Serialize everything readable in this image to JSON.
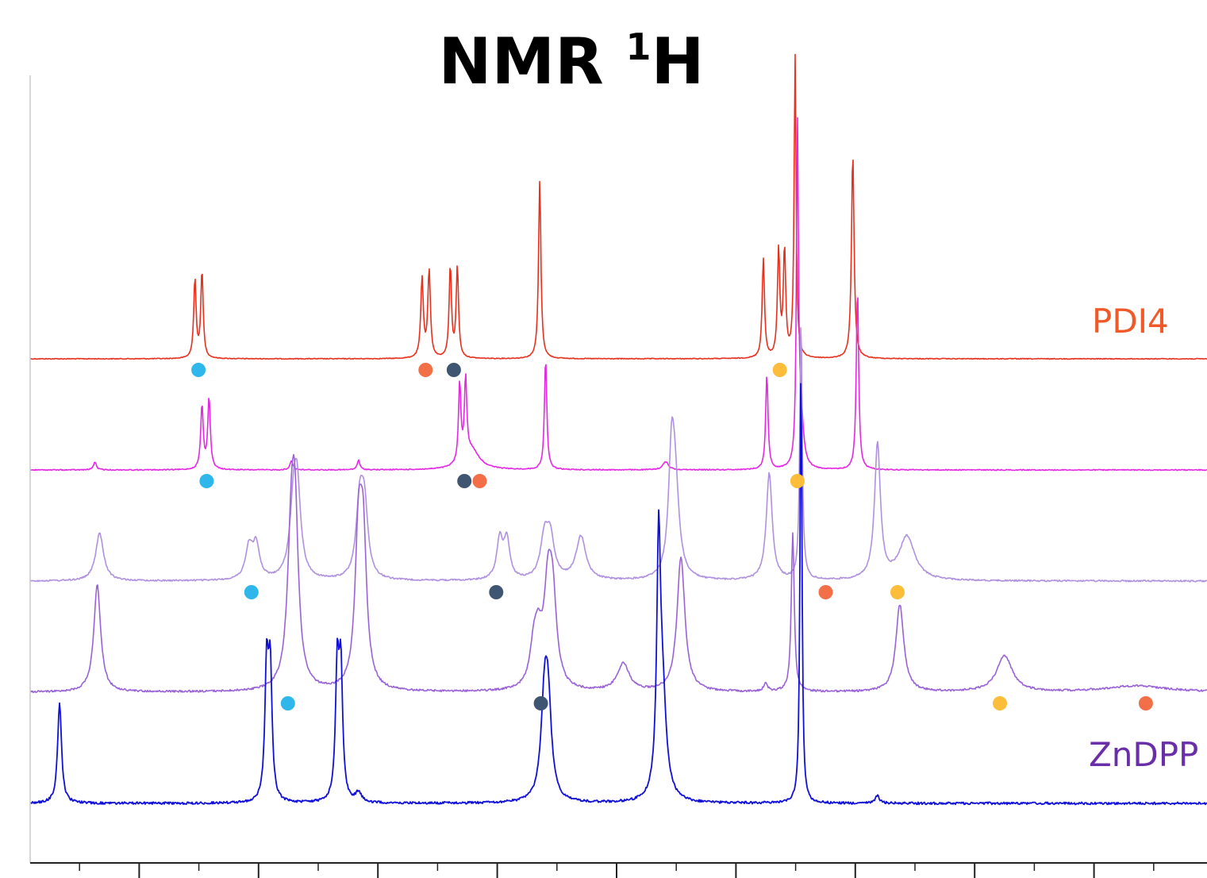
{
  "chart_data": {
    "type": "line",
    "title": "NMR ",
    "title_superscript": "1",
    "title_suffix": "H",
    "xlabel": "",
    "ylabel": "",
    "x_range": [
      0,
      1
    ],
    "grid": false,
    "legend": "none",
    "series": [
      {
        "name": "PDI4",
        "color": "#e8301c",
        "label_color": "#f05a28",
        "offset": 0.0,
        "noise": 0.004,
        "peaks": [
          [
            0.14,
            100,
            0.0012
          ],
          [
            0.146,
            110,
            0.0012
          ],
          [
            0.333,
            100,
            0.0013
          ],
          [
            0.339,
            110,
            0.0013
          ],
          [
            0.357,
            115,
            0.0012
          ],
          [
            0.363,
            115,
            0.0012
          ],
          [
            0.433,
            225,
            0.0012
          ],
          [
            0.623,
            125,
            0.0012
          ],
          [
            0.636,
            135,
            0.0012
          ],
          [
            0.641,
            135,
            0.0012
          ],
          [
            0.65,
            380,
            0.001
          ],
          [
            0.699,
            260,
            0.0013
          ]
        ],
        "markers": [
          {
            "x": 0.143,
            "color": "#2fb6ea"
          },
          {
            "x": 0.336,
            "color": "#f26f47"
          },
          {
            "x": 0.36,
            "color": "#3f5673"
          },
          {
            "x": 0.637,
            "color": "#fbbd3a"
          }
        ]
      },
      {
        "name": "",
        "color": "#e428e4",
        "offset": 140,
        "noise": 0.005,
        "peaks": [
          [
            0.055,
            10,
            0.0015
          ],
          [
            0.146,
            80,
            0.0013
          ],
          [
            0.152,
            90,
            0.0013
          ],
          [
            0.222,
            12,
            0.0014
          ],
          [
            0.279,
            12,
            0.0014
          ],
          [
            0.365,
            100,
            0.0012
          ],
          [
            0.37,
            100,
            0.0012
          ],
          [
            0.375,
            25,
            0.008
          ],
          [
            0.438,
            140,
            0.0012
          ],
          [
            0.54,
            10,
            0.003
          ],
          [
            0.626,
            120,
            0.0012
          ],
          [
            0.652,
            420,
            0.001
          ],
          [
            0.655,
            60,
            0.0025
          ],
          [
            0.703,
            230,
            0.0012
          ]
        ],
        "markers": [
          {
            "x": 0.15,
            "color": "#2fb6ea"
          },
          {
            "x": 0.369,
            "color": "#3f5673"
          },
          {
            "x": 0.382,
            "color": "#f26f47"
          },
          {
            "x": 0.652,
            "color": "#fbbd3a"
          }
        ]
      },
      {
        "name": "",
        "color": "#b090e0",
        "offset": 280,
        "noise": 0.008,
        "peaks": [
          [
            0.059,
            60,
            0.004
          ],
          [
            0.186,
            40,
            0.0035
          ],
          [
            0.192,
            42,
            0.0035
          ],
          [
            0.224,
            88,
            0.004
          ],
          [
            0.227,
            90,
            0.0035
          ],
          [
            0.28,
            90,
            0.0035
          ],
          [
            0.284,
            85,
            0.0035
          ],
          [
            0.399,
            50,
            0.003
          ],
          [
            0.405,
            50,
            0.003
          ],
          [
            0.437,
            50,
            0.004
          ],
          [
            0.442,
            50,
            0.004
          ],
          [
            0.468,
            55,
            0.005
          ],
          [
            0.545,
            130,
            0.003
          ],
          [
            0.548,
            110,
            0.004
          ],
          [
            0.628,
            135,
            0.003
          ],
          [
            0.655,
            330,
            0.0012
          ],
          [
            0.72,
            170,
            0.003
          ],
          [
            0.745,
            55,
            0.008
          ]
        ],
        "markers": [
          {
            "x": 0.188,
            "color": "#2fb6ea"
          },
          {
            "x": 0.396,
            "color": "#3f5673"
          },
          {
            "x": 0.676,
            "color": "#f26f47"
          },
          {
            "x": 0.737,
            "color": "#fbbd3a"
          }
        ]
      },
      {
        "name": "",
        "color": "#9a62d8",
        "offset": 420,
        "noise": 0.01,
        "peaks": [
          [
            0.057,
            135,
            0.0035
          ],
          [
            0.222,
            170,
            0.004
          ],
          [
            0.225,
            175,
            0.0035
          ],
          [
            0.279,
            175,
            0.0035
          ],
          [
            0.283,
            170,
            0.0035
          ],
          [
            0.428,
            45,
            0.004
          ],
          [
            0.432,
            50,
            0.004
          ],
          [
            0.44,
            110,
            0.004
          ],
          [
            0.444,
            100,
            0.004
          ],
          [
            0.504,
            35,
            0.006
          ],
          [
            0.553,
            170,
            0.004
          ],
          [
            0.625,
            10,
            0.002
          ],
          [
            0.648,
            200,
            0.0015
          ],
          [
            0.739,
            110,
            0.004
          ],
          [
            0.828,
            45,
            0.008
          ],
          [
            0.94,
            8,
            0.03
          ]
        ],
        "markers": [
          {
            "x": 0.219,
            "color": "#2fb6ea"
          },
          {
            "x": 0.434,
            "color": "#3f5673"
          },
          {
            "x": 0.824,
            "color": "#fbbd3a"
          },
          {
            "x": 0.948,
            "color": "#f26f47"
          }
        ]
      },
      {
        "name": "ZnDPP",
        "color": "#1010d8",
        "label_color": "#6a2fa8",
        "offset": 560,
        "noise": 0.012,
        "peaks": [
          [
            0.025,
            125,
            0.002
          ],
          [
            0.201,
            165,
            0.0018
          ],
          [
            0.204,
            160,
            0.0018
          ],
          [
            0.261,
            165,
            0.0018
          ],
          [
            0.264,
            160,
            0.0018
          ],
          [
            0.279,
            12,
            0.003
          ],
          [
            0.437,
            110,
            0.0035
          ],
          [
            0.44,
            110,
            0.0035
          ],
          [
            0.534,
            280,
            0.0018
          ],
          [
            0.537,
            140,
            0.004
          ],
          [
            0.655,
            560,
            0.001
          ],
          [
            0.72,
            10,
            0.002
          ]
        ],
        "markers": []
      }
    ]
  }
}
